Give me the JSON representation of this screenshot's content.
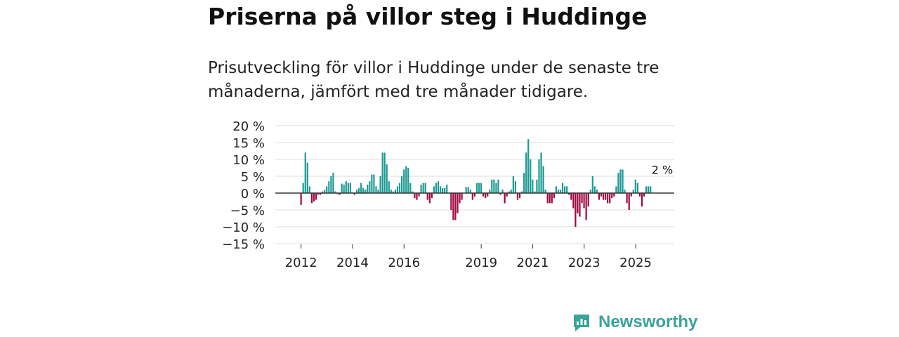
{
  "header": {
    "title": "Priserna på villor steg i Huddinge",
    "subtitle": "Prisutveckling för villor i Huddinge under de senaste tre månaderna, jämfört med tre månader tidigare."
  },
  "brand": {
    "name": "Newsworthy",
    "logo_icon": "newsworthy-logo-icon",
    "color": "#3aa39a"
  },
  "colors": {
    "positive": "#1a9a93",
    "negative": "#a0073f",
    "grid": "#dddddd",
    "zero_line": "#333333",
    "axis_text": "#222222"
  },
  "chart_data": {
    "type": "bar",
    "title": "Prisutveckling för villor i Huddinge",
    "xlabel": "",
    "ylabel": "",
    "unit": "%",
    "ylim": [
      -15,
      20
    ],
    "yticks": [
      20,
      15,
      10,
      5,
      0,
      -5,
      -10,
      -15
    ],
    "ytick_labels": [
      "20 %",
      "15 %",
      "10 %",
      "5 %",
      "0 %",
      "−5 %",
      "−10 %",
      "−15 %"
    ],
    "xlim": [
      2011.0,
      2026.5
    ],
    "xticks": [
      2012,
      2014,
      2016,
      2019,
      2021,
      2023,
      2025
    ],
    "xtick_labels": [
      "2012",
      "2014",
      "2016",
      "2019",
      "2021",
      "2023",
      "2025"
    ],
    "start": 2012.0,
    "step": 0.0833,
    "values": [
      -3.5,
      3,
      12,
      9,
      2,
      -3,
      -2.5,
      -2,
      -0.5,
      -0.5,
      0.5,
      1,
      2,
      3.5,
      5,
      6,
      0.5,
      -0.3,
      -0.5,
      2.8,
      2.5,
      3.5,
      3,
      3,
      0.2,
      -0.5,
      1,
      1.5,
      3,
      1.5,
      1,
      2.5,
      3.5,
      5.5,
      5.5,
      2,
      1,
      5,
      12,
      12,
      8.5,
      3.5,
      1,
      0.5,
      1,
      2,
      3,
      5,
      7,
      8,
      7.5,
      3,
      0.5,
      -1.5,
      -2,
      -1,
      2.5,
      3,
      3,
      -2,
      -3,
      -1.5,
      2,
      3,
      3.5,
      2,
      1.5,
      1.5,
      2.5,
      0,
      -5,
      -8,
      -8,
      -6,
      -3,
      -2,
      0,
      1.8,
      1.8,
      1,
      -2,
      -1,
      3,
      3,
      3,
      -1,
      -1.5,
      -1,
      1,
      4,
      4,
      3,
      4,
      -0.5,
      1,
      -3,
      -1,
      0.5,
      1,
      5,
      3.5,
      -2,
      -1.5,
      0.5,
      6,
      12,
      16,
      10,
      4,
      0.5,
      4,
      10,
      12,
      8,
      1,
      -3,
      -3,
      -3,
      -1.5,
      2,
      1,
      1,
      3,
      2,
      2,
      -0.5,
      -2,
      -4.5,
      -10,
      -6,
      -7,
      -3,
      -4.5,
      -8,
      -4,
      1,
      5,
      2,
      1,
      -2,
      -1,
      -2,
      -2,
      -3,
      -3,
      -1.5,
      -1,
      2,
      6,
      7,
      7,
      1,
      -3,
      -5,
      -1,
      1,
      4,
      3,
      -1,
      -4,
      -1,
      2,
      2,
      2
    ],
    "annotations": [
      {
        "label": "2 %",
        "x_value": 2025.4,
        "y_value": 2
      }
    ]
  }
}
